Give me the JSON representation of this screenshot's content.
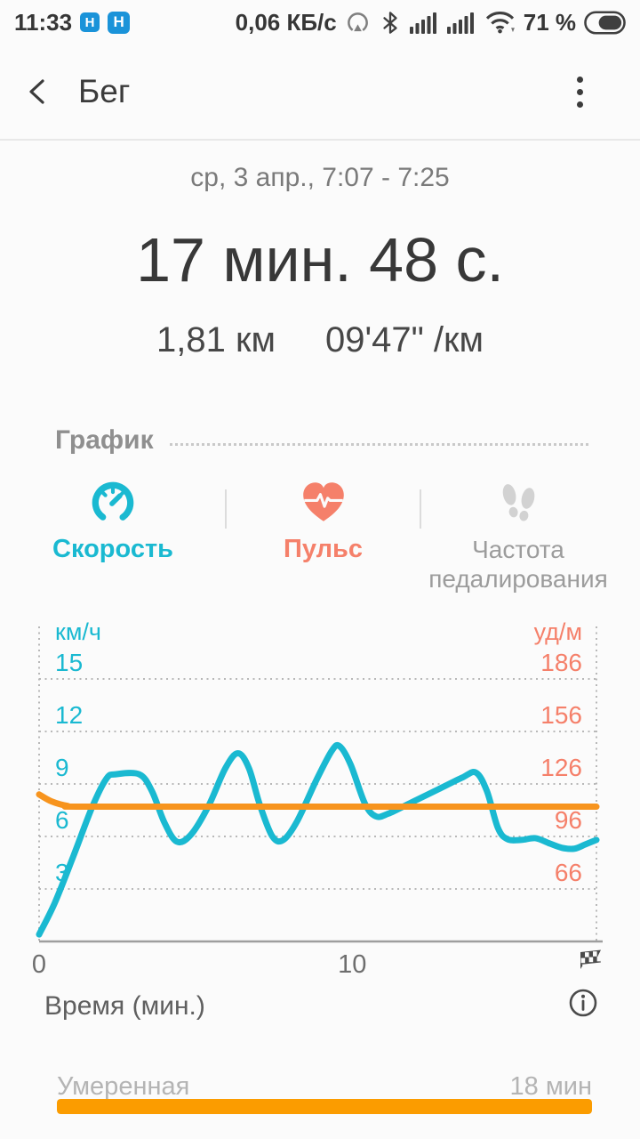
{
  "colors": {
    "accent_cyan": "#1ab9d1",
    "accent_salmon": "#f5806a",
    "chart_orange": "#f7941e",
    "bar_orange": "#fb9c00",
    "badge_blue": "#1a93d9"
  },
  "icons": {
    "back": "chevron-left",
    "menu": "kebab-vertical-dots",
    "speed_tab": "speedometer-gauge",
    "pulse_tab": "heart-with-ecg",
    "cadence_tab": "footprints",
    "chart_end": "checkered-finish-flag",
    "chart_info": "circled-i"
  },
  "status_bar": {
    "time": "11:33",
    "sim_badge_1": "H",
    "sim_badge_2": "H",
    "network_speed": "0,06 КБ/с",
    "battery_percent": "71 %"
  },
  "header": {
    "title": "Бег"
  },
  "summary": {
    "date_range": "ср, 3 апр., 7:07 - 7:25",
    "duration": "17 мин. 48 с.",
    "distance": "1,81 км",
    "pace": "09'47\" /км"
  },
  "graph_section": {
    "title": "График"
  },
  "tabs": [
    {
      "id": "speed",
      "label": "Скорость"
    },
    {
      "id": "pulse",
      "label": "Пульс"
    },
    {
      "id": "cadence",
      "label": "Частота педалирования"
    }
  ],
  "chart_data": {
    "type": "line",
    "title": "",
    "grid": "dotted",
    "legend": "none",
    "x_axis": {
      "label": "Время (мин.)",
      "ticks": [
        0,
        10
      ],
      "range": [
        0,
        17.8
      ]
    },
    "left_axis": {
      "unit": "км/ч",
      "ticks": [
        15,
        12,
        9,
        6,
        3
      ],
      "range": [
        0,
        18.2
      ]
    },
    "right_axis": {
      "unit": "уд/м",
      "ticks": [
        186,
        156,
        126,
        96,
        66
      ],
      "range": [
        36,
        218
      ]
    },
    "series": [
      {
        "name": "Скорость",
        "axis": "left",
        "color_key": "accent_cyan",
        "points": [
          [
            0,
            0.4
          ],
          [
            0.5,
            2.2
          ],
          [
            1.1,
            4.9
          ],
          [
            1.7,
            7.7
          ],
          [
            2.15,
            9.3
          ],
          [
            2.45,
            9.55
          ],
          [
            3.2,
            9.55
          ],
          [
            3.6,
            8.6
          ],
          [
            4.0,
            6.8
          ],
          [
            4.4,
            5.7
          ],
          [
            4.85,
            6.1
          ],
          [
            5.4,
            7.7
          ],
          [
            5.95,
            9.9
          ],
          [
            6.35,
            10.75
          ],
          [
            6.7,
            9.9
          ],
          [
            7.05,
            7.8
          ],
          [
            7.45,
            6.0
          ],
          [
            7.8,
            5.8
          ],
          [
            8.25,
            6.9
          ],
          [
            8.85,
            9.2
          ],
          [
            9.35,
            10.9
          ],
          [
            9.6,
            11.15
          ],
          [
            9.95,
            10.1
          ],
          [
            10.4,
            7.9
          ],
          [
            10.75,
            7.15
          ],
          [
            11.15,
            7.3
          ],
          [
            11.9,
            7.95
          ],
          [
            12.7,
            8.65
          ],
          [
            13.5,
            9.35
          ],
          [
            13.95,
            9.65
          ],
          [
            14.3,
            8.6
          ],
          [
            14.65,
            6.5
          ],
          [
            14.95,
            5.85
          ],
          [
            15.4,
            5.8
          ],
          [
            15.85,
            5.9
          ],
          [
            16.3,
            5.6
          ],
          [
            16.7,
            5.35
          ],
          [
            17.1,
            5.3
          ],
          [
            17.45,
            5.55
          ],
          [
            17.8,
            5.8
          ]
        ]
      },
      {
        "name": "Пульс",
        "axis": "right",
        "color_key": "chart_orange",
        "points": [
          [
            0,
            120
          ],
          [
            0.4,
            116
          ],
          [
            0.9,
            113.5
          ],
          [
            1.5,
            113
          ],
          [
            8,
            113
          ],
          [
            17.8,
            113
          ]
        ]
      }
    ]
  },
  "intensity": {
    "label": "Умеренная",
    "duration": "18 мин",
    "progress": 1
  }
}
